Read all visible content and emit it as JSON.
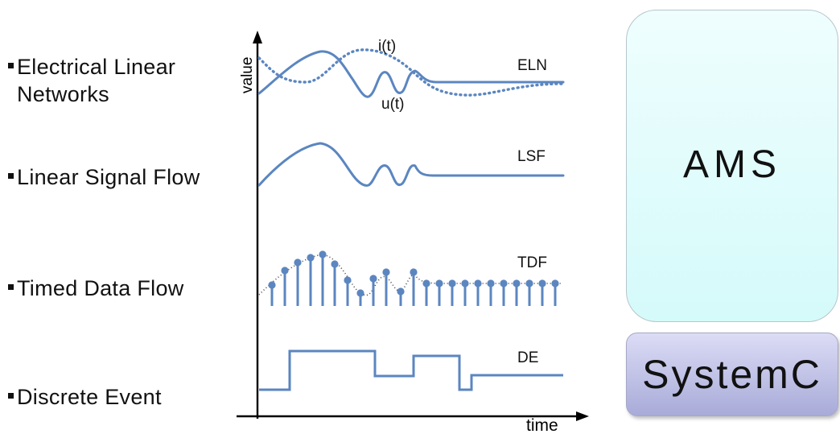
{
  "bullets": [
    {
      "line1": "Electrical Linear",
      "line2": "Networks"
    },
    {
      "line1": "Linear Signal Flow"
    },
    {
      "line1": "Timed Data Flow"
    },
    {
      "line1": "Discrete Event"
    }
  ],
  "diagram": {
    "y_axis_label": "value",
    "x_axis_label": "time",
    "trace_labels": {
      "eln": "ELN",
      "lsf": "LSF",
      "tdf": "TDF",
      "de": "DE",
      "i": "i(t)",
      "u": "u(t)"
    },
    "colors": {
      "trace": "#5b86c0",
      "axis": "#000000"
    }
  },
  "boxes": {
    "ams": "AMS",
    "systemc": "SystemC"
  }
}
